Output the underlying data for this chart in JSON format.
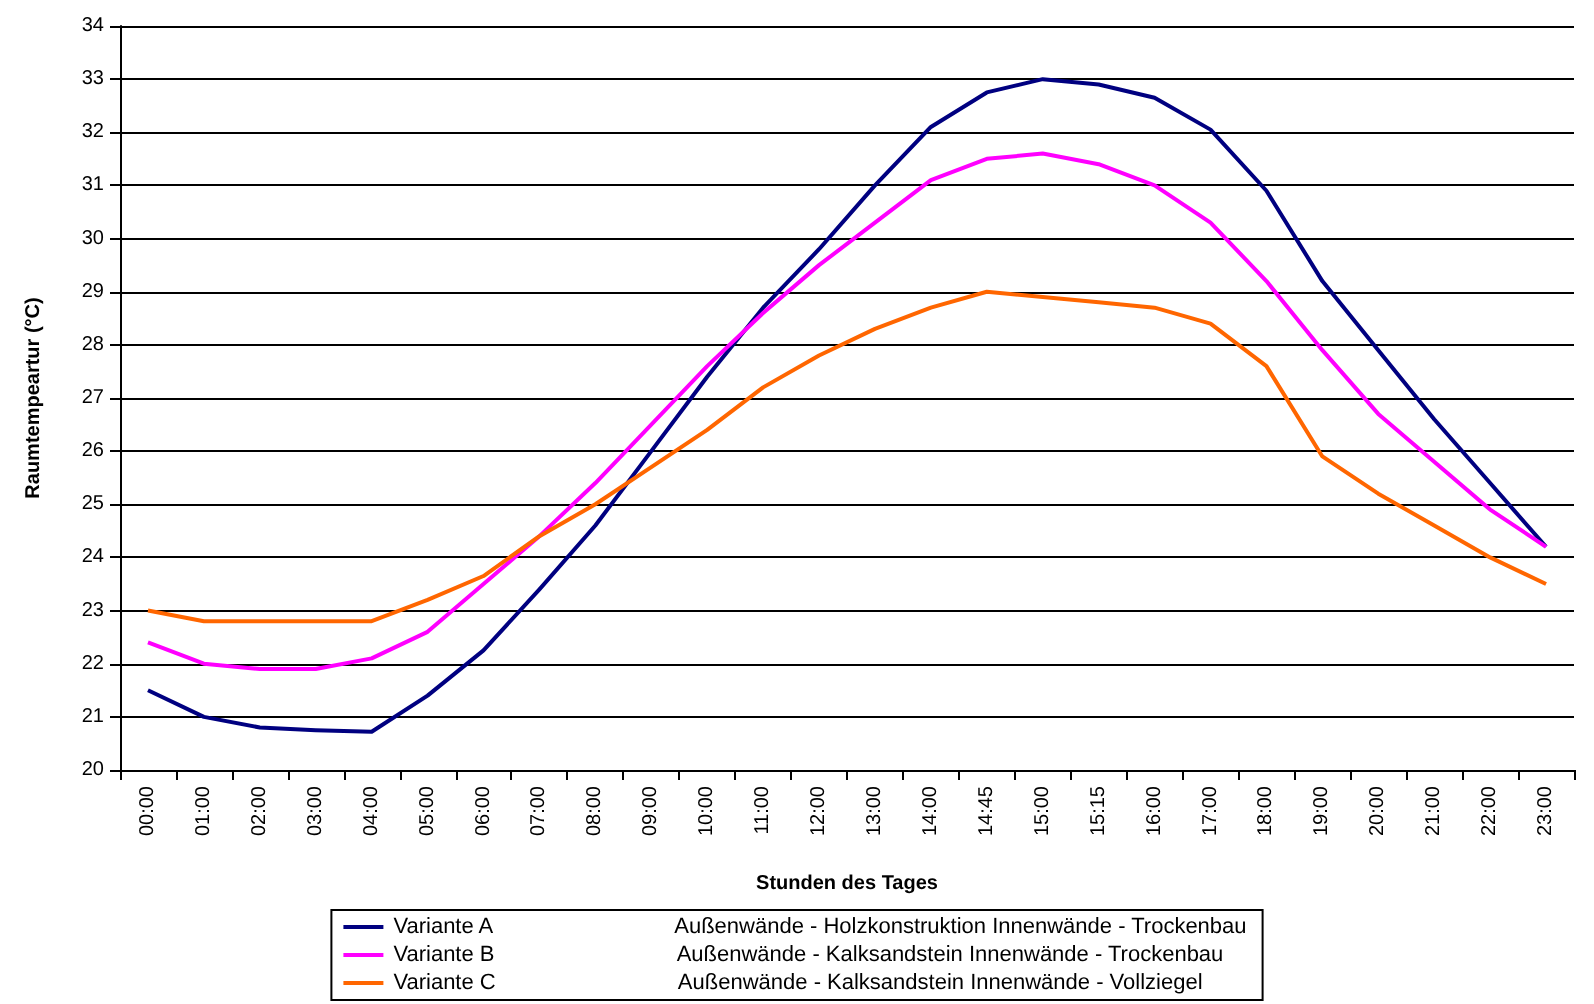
{
  "chart_data": {
    "type": "line",
    "xlabel": "Stunden des Tages",
    "ylabel": "Raumtempeartur (°C)",
    "categories": [
      "00:00",
      "01:00",
      "02:00",
      "03:00",
      "04:00",
      "05:00",
      "06:00",
      "07:00",
      "08:00",
      "09:00",
      "10:00",
      "11:00",
      "12:00",
      "13:00",
      "14:00",
      "14:45",
      "15:00",
      "15:15",
      "16:00",
      "17:00",
      "18:00",
      "19:00",
      "20:00",
      "21:00",
      "22:00",
      "23:00"
    ],
    "series": [
      {
        "name": "Variante A                              Außenwände - Holzkonstruktion Innenwände - Trockenbau",
        "color": "#000080",
        "values": [
          21.5,
          21.0,
          20.8,
          20.75,
          20.72,
          21.4,
          22.25,
          23.4,
          24.6,
          26.0,
          27.4,
          28.7,
          29.8,
          31.0,
          32.1,
          32.75,
          33.0,
          32.9,
          32.65,
          32.05,
          30.9,
          29.2,
          27.9,
          26.6,
          25.4,
          24.2
        ]
      },
      {
        "name": "Variante B                              Außenwände - Kalksandstein Innenwände - Trockenbau",
        "color": "#ff00ff",
        "values": [
          22.4,
          22.0,
          21.9,
          21.9,
          22.1,
          22.6,
          23.5,
          24.4,
          25.4,
          26.5,
          27.6,
          28.6,
          29.5,
          30.3,
          31.1,
          31.5,
          31.6,
          31.4,
          31.0,
          30.3,
          29.2,
          27.9,
          26.7,
          25.8,
          24.9,
          24.2
        ]
      },
      {
        "name": "Variante C                              Außenwände - Kalksandstein Innenwände - Vollziegel",
        "color": "#ff6600",
        "values": [
          23.0,
          22.8,
          22.8,
          22.8,
          22.8,
          23.2,
          23.65,
          24.4,
          25.0,
          25.7,
          26.4,
          27.2,
          27.8,
          28.3,
          28.7,
          29.0,
          28.9,
          28.8,
          28.7,
          28.4,
          27.6,
          25.9,
          25.2,
          24.6,
          24.0,
          23.5
        ]
      }
    ],
    "ylim": [
      20,
      34
    ],
    "yticks": [
      20,
      21,
      22,
      23,
      24,
      25,
      26,
      27,
      28,
      29,
      30,
      31,
      32,
      33,
      34
    ],
    "grid": "y",
    "legend": "bottom",
    "marker": "none",
    "line_style": "solid"
  }
}
